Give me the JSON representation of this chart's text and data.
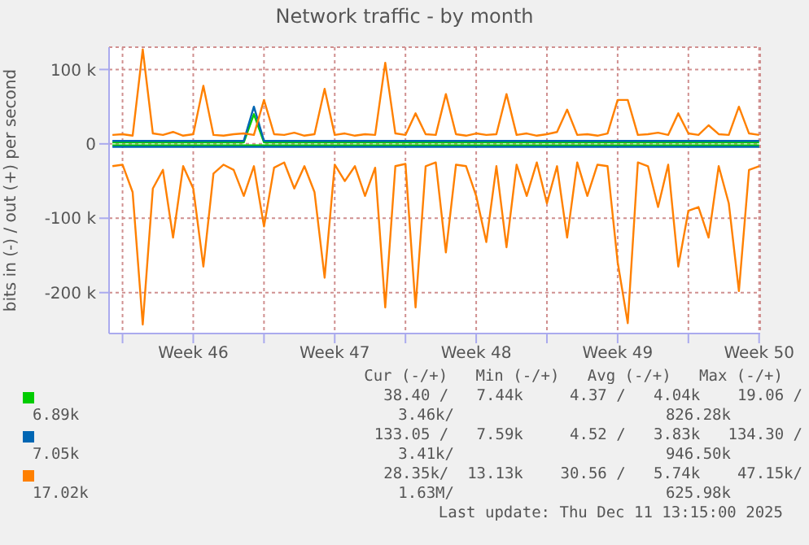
{
  "chart_data": {
    "type": "line",
    "title": "Network traffic - by month",
    "ylabel": "bits in (-) / out (+) per second",
    "x": [
      "2025-11-09T12:00",
      "2025-11-10T00:00",
      "2025-11-10T12:00",
      "2025-11-11T00:00",
      "2025-11-11T12:00",
      "2025-11-12T00:00",
      "2025-11-12T12:00",
      "2025-11-13T00:00",
      "2025-11-13T12:00",
      "2025-11-14T00:00",
      "2025-11-14T12:00",
      "2025-11-15T00:00",
      "2025-11-15T12:00",
      "2025-11-16T00:00",
      "2025-11-16T12:00",
      "2025-11-17T00:00",
      "2025-11-17T12:00",
      "2025-11-18T00:00",
      "2025-11-18T12:00",
      "2025-11-19T00:00",
      "2025-11-19T12:00",
      "2025-11-20T00:00",
      "2025-11-20T12:00",
      "2025-11-21T00:00",
      "2025-11-21T12:00",
      "2025-11-22T00:00",
      "2025-11-22T12:00",
      "2025-11-23T00:00",
      "2025-11-23T12:00",
      "2025-11-24T00:00",
      "2025-11-24T12:00",
      "2025-11-25T00:00",
      "2025-11-25T12:00",
      "2025-11-26T00:00",
      "2025-11-26T12:00",
      "2025-11-27T00:00",
      "2025-11-27T12:00",
      "2025-11-28T00:00",
      "2025-11-28T12:00",
      "2025-11-29T00:00",
      "2025-11-29T12:00",
      "2025-11-30T00:00",
      "2025-11-30T12:00",
      "2025-12-01T00:00",
      "2025-12-01T12:00",
      "2025-12-02T00:00",
      "2025-12-02T12:00",
      "2025-12-03T00:00",
      "2025-12-03T12:00",
      "2025-12-04T00:00",
      "2025-12-04T12:00",
      "2025-12-05T00:00",
      "2025-12-05T12:00",
      "2025-12-06T00:00",
      "2025-12-06T12:00",
      "2025-12-07T00:00",
      "2025-12-07T12:00",
      "2025-12-08T00:00",
      "2025-12-08T12:00",
      "2025-12-09T00:00",
      "2025-12-09T12:00",
      "2025-12-10T00:00",
      "2025-12-10T12:00",
      "2025-12-11T00:00",
      "2025-12-11T12:00"
    ],
    "series": [
      {
        "color": "#00cc00",
        "values": [
          2000,
          2000,
          2000,
          2000,
          2000,
          2000,
          2000,
          2000,
          2000,
          2000,
          2000,
          2000,
          2000,
          2000,
          40000,
          2000,
          2000,
          2000,
          2000,
          2000,
          2000,
          2000,
          2000,
          2000,
          2000,
          2000,
          2000,
          2000,
          2000,
          2000,
          2000,
          2000,
          2000,
          2000,
          2000,
          2000,
          2000,
          2000,
          2000,
          2000,
          2000,
          2000,
          2000,
          2000,
          2000,
          2000,
          2000,
          2000,
          2000,
          2000,
          2000,
          2000,
          2000,
          2000,
          2000,
          2000,
          2000,
          2000,
          2000,
          2000,
          2000,
          2000,
          2000,
          2000,
          2000
        ]
      },
      {
        "color": "#00cc00",
        "values": [
          -2000,
          -2000,
          -2000,
          -2000,
          -2000,
          -2000,
          -2000,
          -2000,
          -2000,
          -2000,
          -2000,
          -2000,
          -2000,
          -2000,
          -2000,
          -2000,
          -2000,
          -2000,
          -2000,
          -2000,
          -2000,
          -2000,
          -2000,
          -2000,
          -2000,
          -2000,
          -2000,
          -2000,
          -2000,
          -2000,
          -2000,
          -2000,
          -2000,
          -2000,
          -2000,
          -2000,
          -2000,
          -2000,
          -2000,
          -2000,
          -2000,
          -2000,
          -2000,
          -2000,
          -2000,
          -2000,
          -2000,
          -2000,
          -2000,
          -2000,
          -2000,
          -2000,
          -2000,
          -2000,
          -2000,
          -2000,
          -2000,
          -2000,
          -2000,
          -2000,
          -2000,
          -2000,
          -2000,
          -2000,
          -2000
        ]
      },
      {
        "color": "#0066b3",
        "values": [
          4000,
          4000,
          4000,
          4000,
          4000,
          4000,
          4000,
          4000,
          4000,
          4000,
          4000,
          4000,
          4000,
          4000,
          50000,
          4000,
          4000,
          4000,
          4000,
          4000,
          4000,
          4000,
          4000,
          4000,
          4000,
          4000,
          4000,
          4000,
          4000,
          4000,
          4000,
          4000,
          4000,
          4000,
          4000,
          4000,
          4000,
          4000,
          4000,
          4000,
          4000,
          4000,
          4000,
          4000,
          4000,
          4000,
          4000,
          4000,
          4000,
          4000,
          4000,
          4000,
          4000,
          4000,
          4000,
          4000,
          4000,
          4000,
          4000,
          4000,
          4000,
          4000,
          4000,
          4000,
          4000
        ]
      },
      {
        "color": "#0066b3",
        "values": [
          -4000,
          -4000,
          -4000,
          -4000,
          -4000,
          -4000,
          -4000,
          -4000,
          -4000,
          -4000,
          -4000,
          -4000,
          -4000,
          -4000,
          -4000,
          -4000,
          -4000,
          -4000,
          -4000,
          -4000,
          -4000,
          -4000,
          -4000,
          -4000,
          -4000,
          -4000,
          -4000,
          -4000,
          -4000,
          -4000,
          -4000,
          -4000,
          -4000,
          -4000,
          -4000,
          -4000,
          -4000,
          -4000,
          -4000,
          -4000,
          -4000,
          -4000,
          -4000,
          -4000,
          -4000,
          -4000,
          -4000,
          -4000,
          -4000,
          -4000,
          -4000,
          -4000,
          -4000,
          -4000,
          -4000,
          -4000,
          -4000,
          -4000,
          -4000,
          -4000,
          -4000,
          -4000,
          -4000,
          -4000,
          -4000
        ]
      },
      {
        "color": "#ff8000",
        "values": [
          12000,
          13000,
          11000,
          127000,
          14000,
          12000,
          16000,
          11000,
          13000,
          78000,
          12000,
          11000,
          13000,
          14000,
          12000,
          59000,
          13000,
          12000,
          15000,
          11000,
          13000,
          74000,
          12000,
          14000,
          11000,
          13000,
          12000,
          109000,
          14000,
          12000,
          41000,
          13000,
          12000,
          67000,
          13000,
          11000,
          14000,
          12000,
          13000,
          67000,
          12000,
          14000,
          11000,
          13000,
          16000,
          46000,
          12000,
          13000,
          11000,
          14000,
          59000,
          59000,
          12000,
          13000,
          15000,
          12000,
          41000,
          14000,
          12000,
          25000,
          13000,
          12000,
          50000,
          14000,
          12000
        ]
      },
      {
        "color": "#ff8000",
        "values": [
          -30000,
          -28000,
          -65000,
          -243000,
          -60000,
          -35000,
          -126000,
          -30000,
          -60000,
          -165000,
          -40000,
          -28000,
          -35000,
          -70000,
          -30000,
          -111000,
          -32000,
          -25000,
          -60000,
          -30000,
          -65000,
          -180000,
          -28000,
          -50000,
          -30000,
          -70000,
          -32000,
          -220000,
          -30000,
          -27000,
          -220000,
          -30000,
          -25000,
          -146000,
          -28000,
          -30000,
          -70000,
          -132000,
          -30000,
          -139000,
          -28000,
          -70000,
          -25000,
          -80000,
          -30000,
          -126000,
          -25000,
          -70000,
          -28000,
          -30000,
          -159000,
          -241000,
          -25000,
          -30000,
          -85000,
          -28000,
          -165000,
          -90000,
          -85000,
          -126000,
          -30000,
          -80000,
          -198000,
          -35000,
          -30000
        ]
      }
    ],
    "xlim": [
      "2025-11-09T08:00",
      "2025-12-11T13:15"
    ],
    "xticks": [
      {
        "value": "2025-11-10T00:00",
        "label": null
      },
      {
        "value": "2025-11-13T12:00",
        "label": "Week 46"
      },
      {
        "value": "2025-11-17T00:00",
        "label": null
      },
      {
        "value": "2025-11-20T12:00",
        "label": "Week 47"
      },
      {
        "value": "2025-11-24T00:00",
        "label": null
      },
      {
        "value": "2025-11-27T12:00",
        "label": "Week 48"
      },
      {
        "value": "2025-12-01T00:00",
        "label": null
      },
      {
        "value": "2025-12-04T12:00",
        "label": "Week 49"
      },
      {
        "value": "2025-12-08T00:00",
        "label": null
      },
      {
        "value": "2025-12-11T12:00",
        "label": "Week 50"
      }
    ],
    "ylim": [
      -255000,
      130000
    ],
    "yticks": [
      {
        "value": -200000,
        "label": "-200 k"
      },
      {
        "value": -100000,
        "label": "-100 k"
      },
      0,
      {
        "value": 100000,
        "label": "100 k"
      }
    ],
    "grid": true,
    "marker": "none",
    "line_style": "solid",
    "annotations": [
      "Cur (-/+)   Min (-/+)   Avg (-/+)   Max (-/+)",
      "38.40 /   7.44k     4.37 /   4.04k    19.06 /",
      "6.89k            3.46k/                 826.28k",
      "133.05 /   7.59k     4.52 /   3.83k   134.30 /",
      "7.05k            3.41k/                 946.50k",
      "28.35k/  13.13k    30.56 /   5.74k    47.15k/",
      "17.02k           1.63M/                 625.98k",
      "Last update: Thu Dec 11 13:15:00 2025"
    ]
  }
}
